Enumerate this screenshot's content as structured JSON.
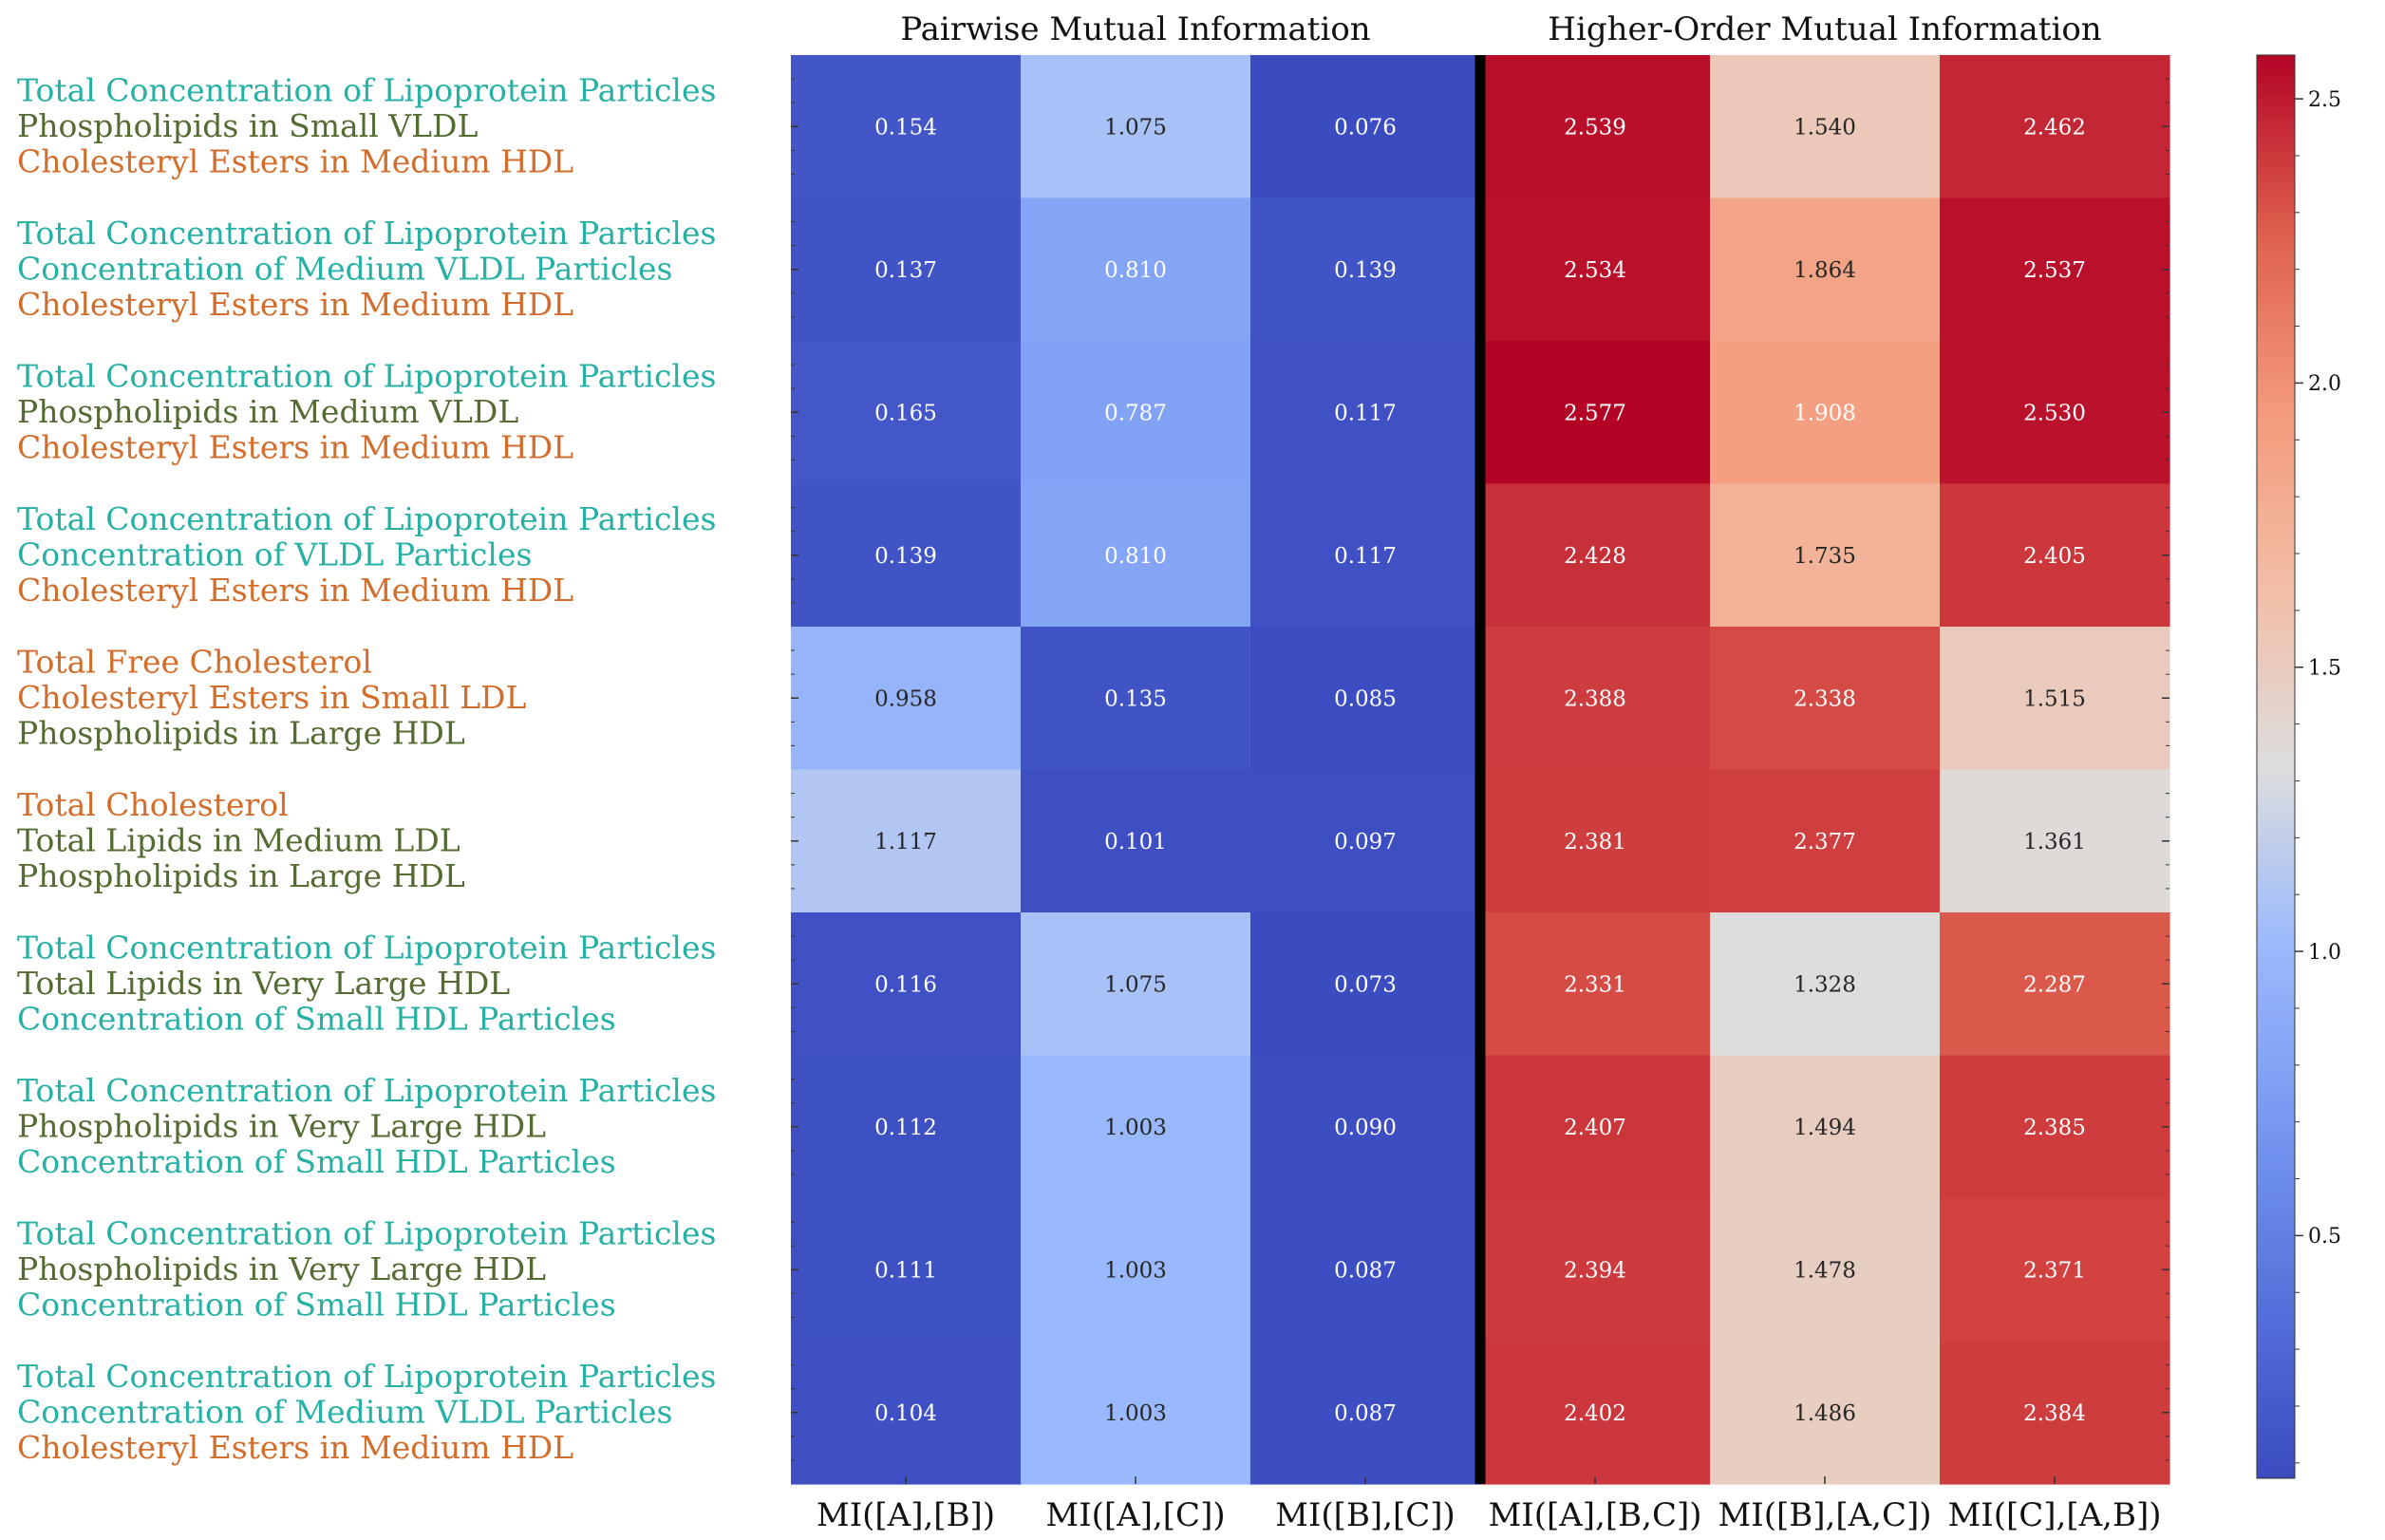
{
  "chart_data": {
    "type": "heatmap",
    "section_titles": [
      "Pairwise Mutual Information",
      "Higher-Order Mutual Information"
    ],
    "columns": [
      "MI([A],[B])",
      "MI([A],[C])",
      "MI([B],[C])",
      "MI([A],[B,C])",
      "MI([B],[A,C])",
      "MI([C],[A,B])"
    ],
    "rows": [
      {
        "labels": [
          {
            "text": "Total Concentration of Lipoprotein Particles",
            "color": "#26b0a6"
          },
          {
            "text": "Phospholipids in Small VLDL",
            "color": "#546b32"
          },
          {
            "text": "Cholesteryl Esters in Medium HDL",
            "color": "#d26d2c"
          }
        ],
        "values": [
          0.154,
          1.075,
          0.076,
          2.539,
          1.54,
          2.462
        ]
      },
      {
        "labels": [
          {
            "text": "Total Concentration of Lipoprotein Particles",
            "color": "#26b0a6"
          },
          {
            "text": "Concentration of Medium VLDL Particles",
            "color": "#26b0a6"
          },
          {
            "text": "Cholesteryl Esters in Medium HDL",
            "color": "#d26d2c"
          }
        ],
        "values": [
          0.137,
          0.81,
          0.139,
          2.534,
          1.864,
          2.537
        ]
      },
      {
        "labels": [
          {
            "text": "Total Concentration of Lipoprotein Particles",
            "color": "#26b0a6"
          },
          {
            "text": "Phospholipids in Medium VLDL",
            "color": "#546b32"
          },
          {
            "text": "Cholesteryl Esters in Medium HDL",
            "color": "#d26d2c"
          }
        ],
        "values": [
          0.165,
          0.787,
          0.117,
          2.577,
          1.908,
          2.53
        ]
      },
      {
        "labels": [
          {
            "text": "Total Concentration of Lipoprotein Particles",
            "color": "#26b0a6"
          },
          {
            "text": "Concentration of VLDL Particles",
            "color": "#26b0a6"
          },
          {
            "text": "Cholesteryl Esters in Medium HDL",
            "color": "#d26d2c"
          }
        ],
        "values": [
          0.139,
          0.81,
          0.117,
          2.428,
          1.735,
          2.405
        ]
      },
      {
        "labels": [
          {
            "text": "Total Free Cholesterol",
            "color": "#d26d2c"
          },
          {
            "text": "Cholesteryl Esters in Small LDL",
            "color": "#d26d2c"
          },
          {
            "text": "Phospholipids in Large HDL",
            "color": "#546b32"
          }
        ],
        "values": [
          0.958,
          0.135,
          0.085,
          2.388,
          2.338,
          1.515
        ]
      },
      {
        "labels": [
          {
            "text": "Total Cholesterol",
            "color": "#d26d2c"
          },
          {
            "text": "Total Lipids in Medium LDL",
            "color": "#546b32"
          },
          {
            "text": "Phospholipids in Large HDL",
            "color": "#546b32"
          }
        ],
        "values": [
          1.117,
          0.101,
          0.097,
          2.381,
          2.377,
          1.361
        ]
      },
      {
        "labels": [
          {
            "text": "Total Concentration of Lipoprotein Particles",
            "color": "#26b0a6"
          },
          {
            "text": "Total Lipids in Very Large HDL",
            "color": "#546b32"
          },
          {
            "text": "Concentration of Small HDL Particles",
            "color": "#26b0a6"
          }
        ],
        "values": [
          0.116,
          1.075,
          0.073,
          2.331,
          1.328,
          2.287
        ]
      },
      {
        "labels": [
          {
            "text": "Total Concentration of Lipoprotein Particles",
            "color": "#26b0a6"
          },
          {
            "text": "Phospholipids in Very Large HDL",
            "color": "#546b32"
          },
          {
            "text": "Concentration of Small HDL Particles",
            "color": "#26b0a6"
          }
        ],
        "values": [
          0.112,
          1.003,
          0.09,
          2.407,
          1.494,
          2.385
        ]
      },
      {
        "labels": [
          {
            "text": "Total Concentration of Lipoprotein Particles",
            "color": "#26b0a6"
          },
          {
            "text": "Phospholipids in Very Large HDL",
            "color": "#546b32"
          },
          {
            "text": "Concentration of Small HDL Particles",
            "color": "#26b0a6"
          }
        ],
        "values": [
          0.111,
          1.003,
          0.087,
          2.394,
          1.478,
          2.371
        ]
      },
      {
        "labels": [
          {
            "text": "Total Concentration of Lipoprotein Particles",
            "color": "#26b0a6"
          },
          {
            "text": "Concentration of Medium VLDL Particles",
            "color": "#26b0a6"
          },
          {
            "text": "Cholesteryl Esters in Medium HDL",
            "color": "#d26d2c"
          }
        ],
        "values": [
          0.104,
          1.003,
          0.087,
          2.402,
          1.486,
          2.384
        ]
      }
    ],
    "colorbar": {
      "min": 0.073,
      "max": 2.577,
      "ticks": [
        0.5,
        1.0,
        1.5,
        2.0,
        2.5
      ],
      "tick_labels": [
        "0.5",
        "1.0",
        "1.5",
        "2.0",
        "2.5"
      ],
      "colormap": "coolwarm"
    },
    "divider_after_column": 3
  }
}
